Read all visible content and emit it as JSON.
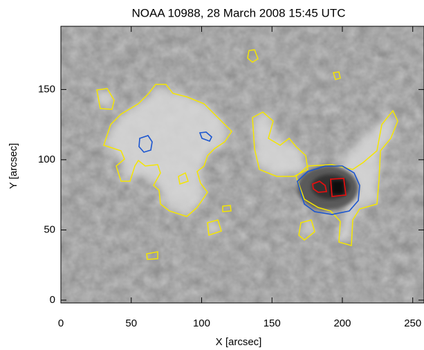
{
  "chart_data": {
    "type": "image",
    "title": "NOAA 10988, 28 March 2008 15:45 UTC",
    "x_label": "X [arcsec]",
    "y_label": "Y [arcsec]",
    "xlim": [
      0,
      258
    ],
    "xticks": [
      0,
      50,
      100,
      150,
      200,
      250
    ],
    "ylim": [
      -2,
      195
    ],
    "yticks": [
      0,
      50,
      100,
      150
    ]
  }
}
